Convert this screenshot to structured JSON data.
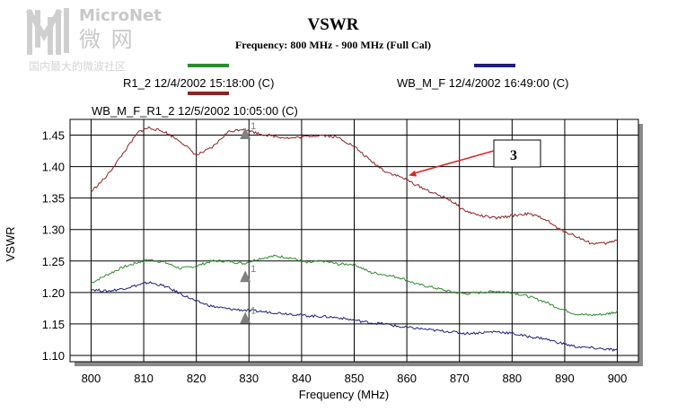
{
  "watermark": {
    "brand": "MicroNet",
    "cn_name": "微 网",
    "tagline": "国内最大的微波社区",
    "color": "#c8c8c8"
  },
  "chart_data": {
    "type": "line",
    "title": "VSWR",
    "subtitle": "Frequency: 800 MHz - 900 MHz (Full Cal)",
    "xlabel": "Frequency (MHz)",
    "ylabel": "VSWR",
    "xlim": [
      796,
      904
    ],
    "ylim": [
      1.09,
      1.475
    ],
    "xticks": [
      800,
      810,
      820,
      830,
      840,
      850,
      860,
      870,
      880,
      890,
      900
    ],
    "yticks": [
      "1.10",
      "1.15",
      "1.20",
      "1.25",
      "1.30",
      "1.35",
      "1.40",
      "1.45"
    ],
    "grid": true,
    "series": [
      {
        "name": "R1_2 12/4/2002 15:18:00 (C)",
        "color": "#2e8b2e",
        "x": [
          800,
          803,
          806,
          809,
          811,
          814,
          817,
          820,
          823,
          826,
          829,
          832,
          835,
          838,
          841,
          844,
          847,
          850,
          853,
          856,
          859,
          862,
          865,
          868,
          871,
          874,
          877,
          880,
          883,
          886,
          889,
          892,
          895,
          898,
          900
        ],
        "y": [
          1.215,
          1.228,
          1.24,
          1.248,
          1.252,
          1.248,
          1.238,
          1.242,
          1.25,
          1.25,
          1.246,
          1.254,
          1.258,
          1.255,
          1.247,
          1.25,
          1.245,
          1.245,
          1.232,
          1.228,
          1.223,
          1.213,
          1.208,
          1.202,
          1.198,
          1.2,
          1.202,
          1.2,
          1.194,
          1.186,
          1.175,
          1.166,
          1.164,
          1.166,
          1.17
        ]
      },
      {
        "name": "WB_M_F 12/4/2002 16:49:00 (C)",
        "color": "#1f1f7a",
        "x": [
          800,
          803,
          806,
          809,
          811,
          814,
          817,
          820,
          823,
          826,
          829,
          832,
          835,
          838,
          841,
          844,
          847,
          850,
          853,
          856,
          859,
          862,
          865,
          868,
          871,
          874,
          877,
          880,
          883,
          886,
          889,
          892,
          895,
          898,
          900
        ],
        "y": [
          1.205,
          1.202,
          1.206,
          1.212,
          1.216,
          1.21,
          1.198,
          1.186,
          1.178,
          1.174,
          1.172,
          1.17,
          1.168,
          1.166,
          1.163,
          1.162,
          1.16,
          1.156,
          1.152,
          1.15,
          1.145,
          1.143,
          1.14,
          1.138,
          1.135,
          1.136,
          1.138,
          1.135,
          1.13,
          1.127,
          1.12,
          1.114,
          1.112,
          1.11,
          1.108
        ]
      },
      {
        "name": "WB_M_F_R1_2 12/5/2002 10:05:00 (C)",
        "color": "#8b2323",
        "x": [
          800,
          803,
          806,
          809,
          811,
          814,
          817,
          820,
          823,
          826,
          829,
          832,
          835,
          838,
          841,
          844,
          847,
          850,
          853,
          856,
          859,
          862,
          865,
          868,
          871,
          874,
          877,
          880,
          883,
          886,
          889,
          892,
          895,
          898,
          900
        ],
        "y": [
          1.36,
          1.385,
          1.42,
          1.455,
          1.462,
          1.455,
          1.44,
          1.418,
          1.43,
          1.455,
          1.46,
          1.452,
          1.448,
          1.445,
          1.448,
          1.45,
          1.446,
          1.432,
          1.41,
          1.392,
          1.383,
          1.37,
          1.358,
          1.348,
          1.33,
          1.322,
          1.318,
          1.322,
          1.325,
          1.318,
          1.3,
          1.29,
          1.278,
          1.278,
          1.284
        ]
      }
    ],
    "markers": [
      {
        "label": "1",
        "x": 829.3,
        "y": 1.455
      },
      {
        "label": "1",
        "x": 829.3,
        "y": 1.228
      },
      {
        "label": "1",
        "x": 829.3,
        "y": 1.162
      }
    ],
    "annotation": {
      "label": "3",
      "points_to": {
        "x": 860,
        "y": 1.383
      }
    }
  }
}
